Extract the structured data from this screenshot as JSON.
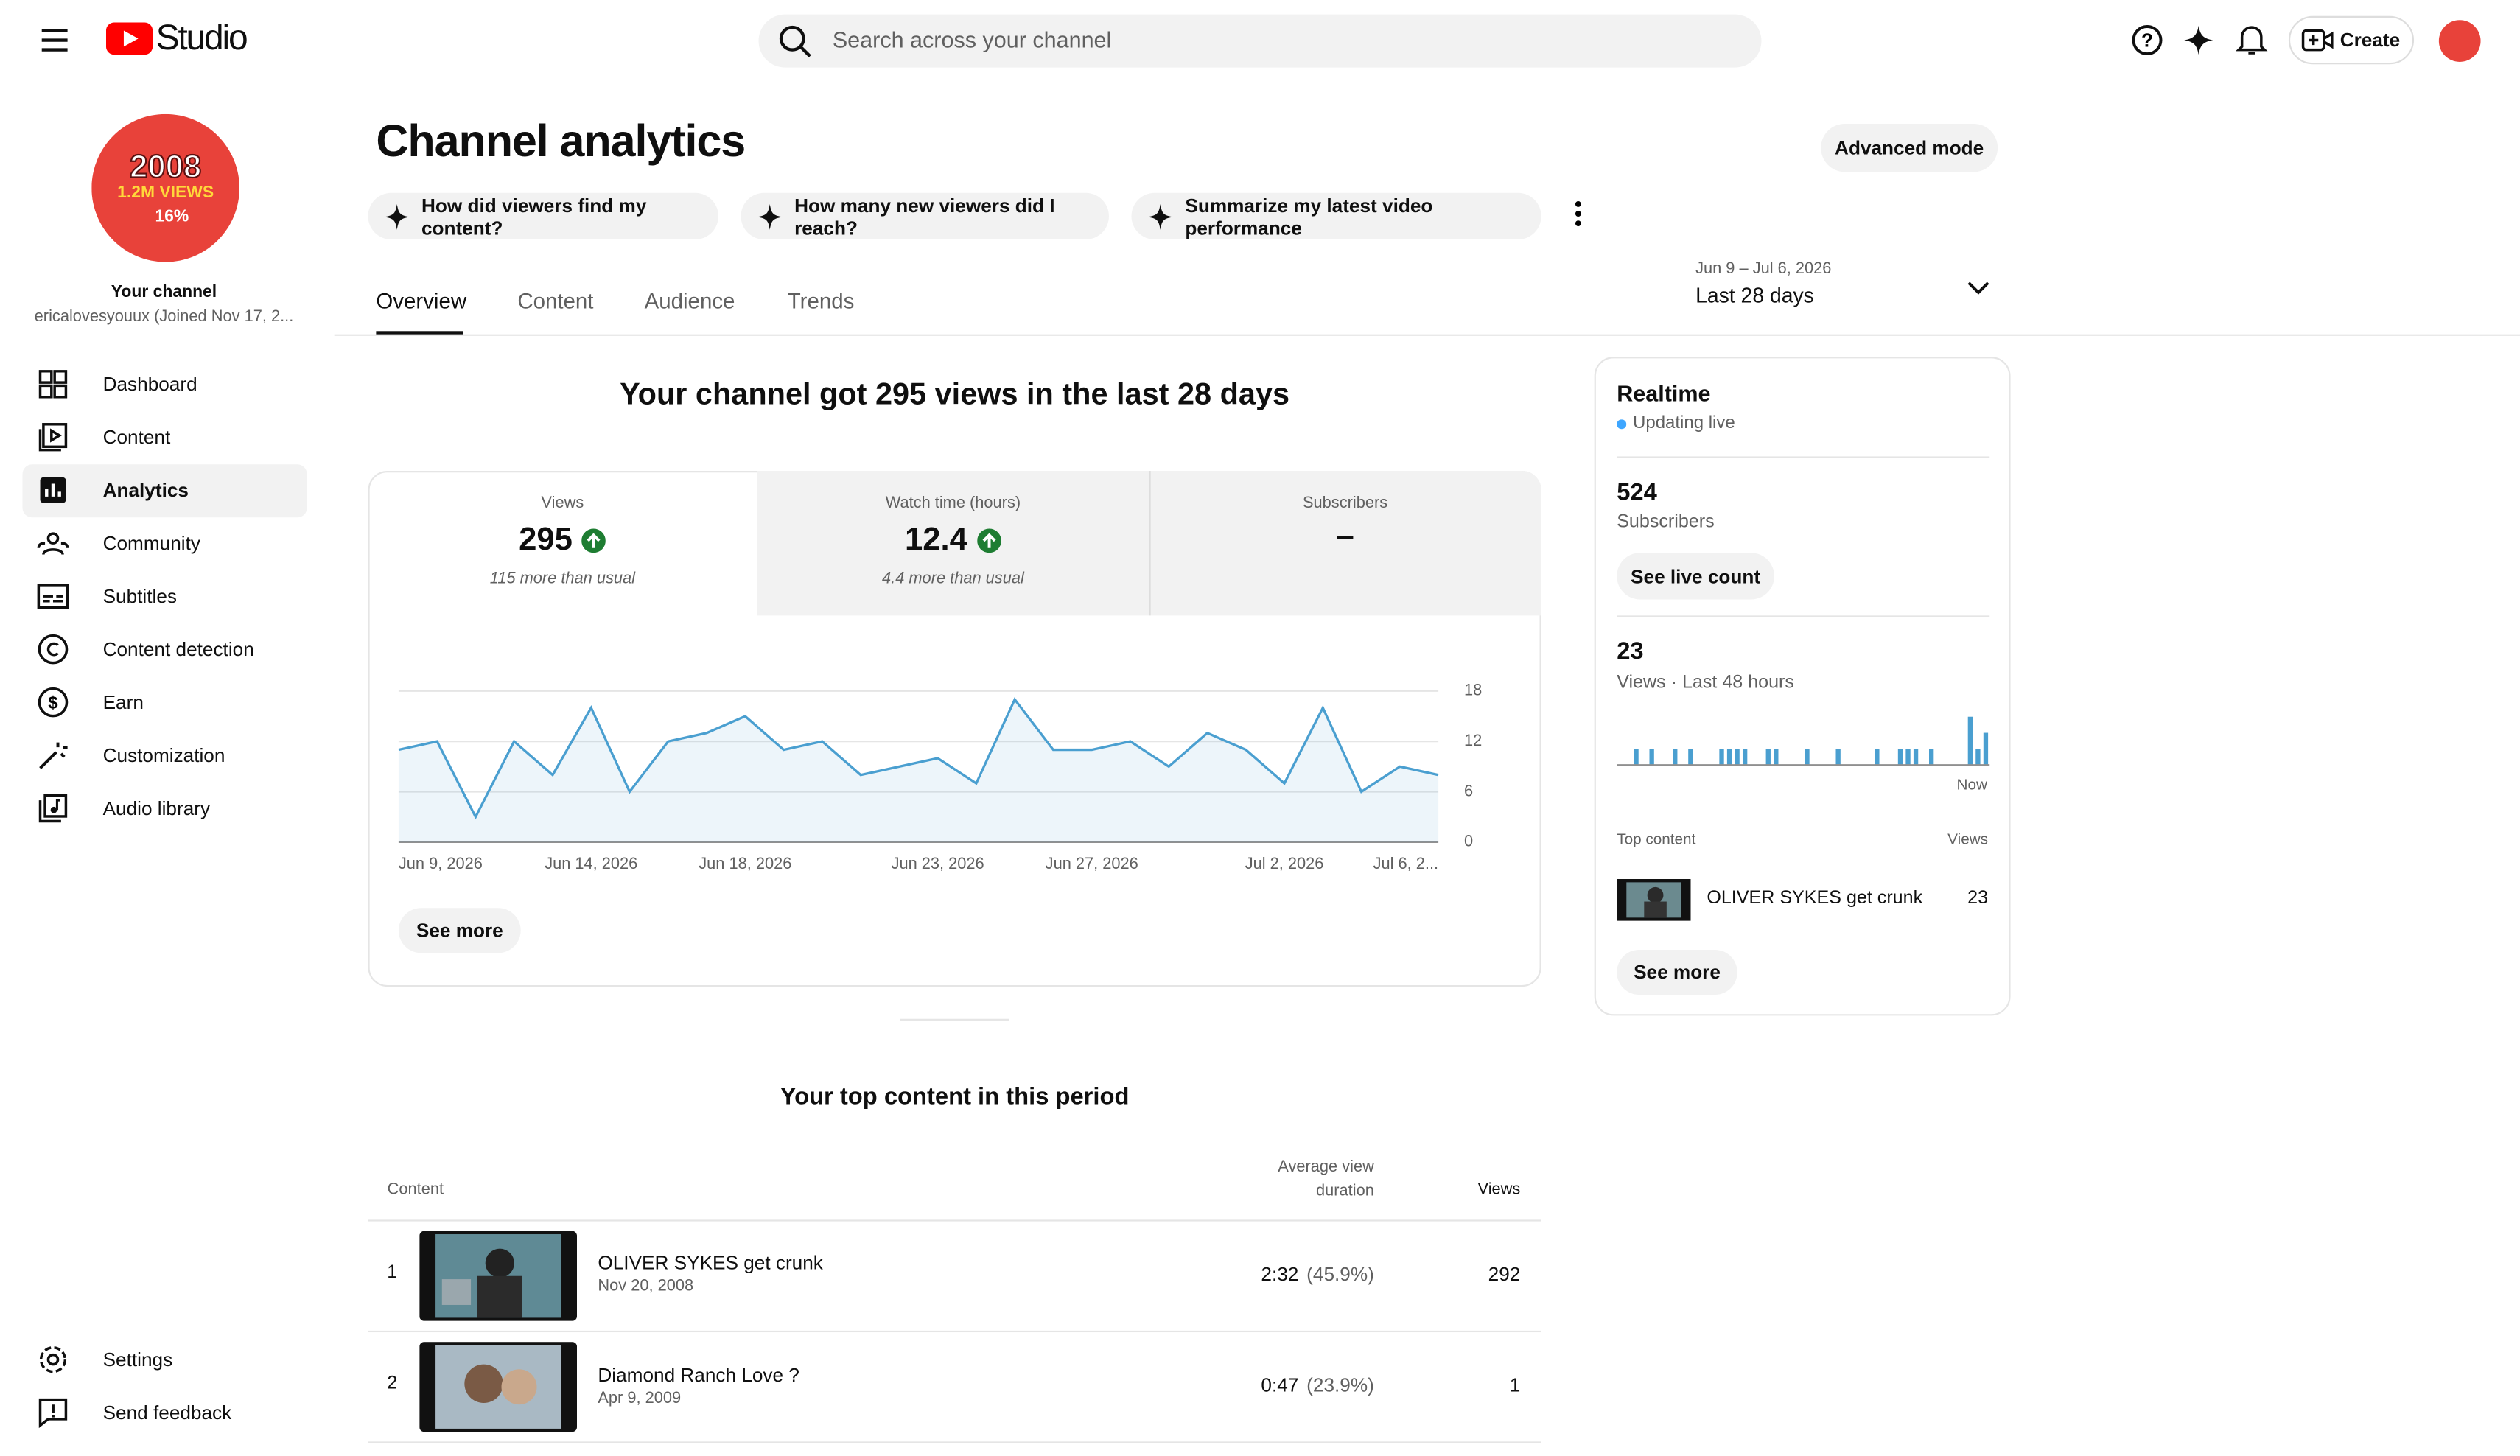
{
  "header": {
    "logo": "Studio",
    "search_placeholder": "Search across your channel",
    "create": "Create"
  },
  "sidebar": {
    "avatar": {
      "line1": "2008",
      "line2": "1.2M VIEWS",
      "line3": "16%"
    },
    "title": "Your channel",
    "handle": "ericalovesyouux (Joined Nov 17, 2...",
    "nav": [
      "Dashboard",
      "Content",
      "Analytics",
      "Community",
      "Subtitles",
      "Content detection",
      "Earn",
      "Customization",
      "Audio library"
    ],
    "footer": [
      "Settings",
      "Send feedback"
    ]
  },
  "page": {
    "title": "Channel analytics",
    "advanced": "Advanced mode",
    "prompts": [
      "How did viewers find my content?",
      "How many new viewers did I reach?",
      "Summarize my latest video performance"
    ],
    "tabs": [
      "Overview",
      "Content",
      "Audience",
      "Trends"
    ],
    "date_range": "Jun 9 – Jul 6, 2026",
    "period": "Last 28 days"
  },
  "overview": {
    "headline": "Your channel got 295 views in the last 28 days",
    "metrics": [
      {
        "label": "Views",
        "value": "295",
        "note": "115 more than usual"
      },
      {
        "label": "Watch time (hours)",
        "value": "12.4",
        "note": "4.4 more than usual"
      },
      {
        "label": "Subscribers",
        "value": "–"
      }
    ],
    "see_more": "See more"
  },
  "realtime": {
    "title": "Realtime",
    "status": "Updating live",
    "subscribers": "524",
    "subscribers_label": "Subscribers",
    "live_count": "See live count",
    "views": "23",
    "views_label": "Views · Last 48 hours",
    "now": "Now",
    "top_content": "Top content",
    "views_col": "Views",
    "top_item": {
      "title": "OLIVER SYKES get crunk",
      "views": "23"
    },
    "see_more": "See more"
  },
  "top_content": {
    "title": "Your top content in this period",
    "columns": [
      "Content",
      "Average view duration",
      "Views"
    ],
    "rows": [
      {
        "rank": "1",
        "title": "OLIVER SYKES get crunk",
        "date": "Nov 20, 2008",
        "duration": "2:32",
        "percent": "(45.9%)",
        "views": "292"
      },
      {
        "rank": "2",
        "title": "Diamond Ranch Love ?",
        "date": "Apr 9, 2009",
        "duration": "0:47",
        "percent": "(23.9%)",
        "views": "1"
      }
    ]
  },
  "chart_data": [
    {
      "type": "line",
      "categories": [
        "Jun 9, 2026",
        null,
        null,
        null,
        null,
        "Jun 14, 2026",
        null,
        null,
        null,
        "Jun 18, 2026",
        null,
        null,
        null,
        null,
        "Jun 23, 2026",
        null,
        null,
        null,
        "Jun 27, 2026",
        null,
        null,
        null,
        null,
        "Jul 2, 2026",
        null,
        null,
        null,
        "Jul 6, 2..."
      ],
      "values": [
        11,
        12,
        3,
        12,
        8,
        16,
        6,
        12,
        13,
        15,
        11,
        12,
        8,
        9,
        10,
        7,
        17,
        11,
        11,
        12,
        9,
        13,
        11,
        7,
        16,
        6,
        9,
        8
      ],
      "color": "#4a9fd0",
      "ylim": [
        0,
        18
      ],
      "yticks": [
        0,
        6,
        12,
        18
      ],
      "grid": true
    },
    {
      "type": "bar",
      "values": [
        0,
        0,
        1,
        0,
        1,
        0,
        0,
        1,
        0,
        1,
        0,
        0,
        0,
        1,
        1,
        1,
        1,
        0,
        0,
        1,
        1,
        0,
        0,
        0,
        1,
        0,
        0,
        0,
        1,
        0,
        0,
        0,
        0,
        1,
        0,
        0,
        1,
        1,
        1,
        0,
        1,
        0,
        0,
        0,
        0,
        3,
        1,
        2
      ],
      "color": "#4a9fd0",
      "ylim": [
        0,
        3
      ]
    }
  ]
}
